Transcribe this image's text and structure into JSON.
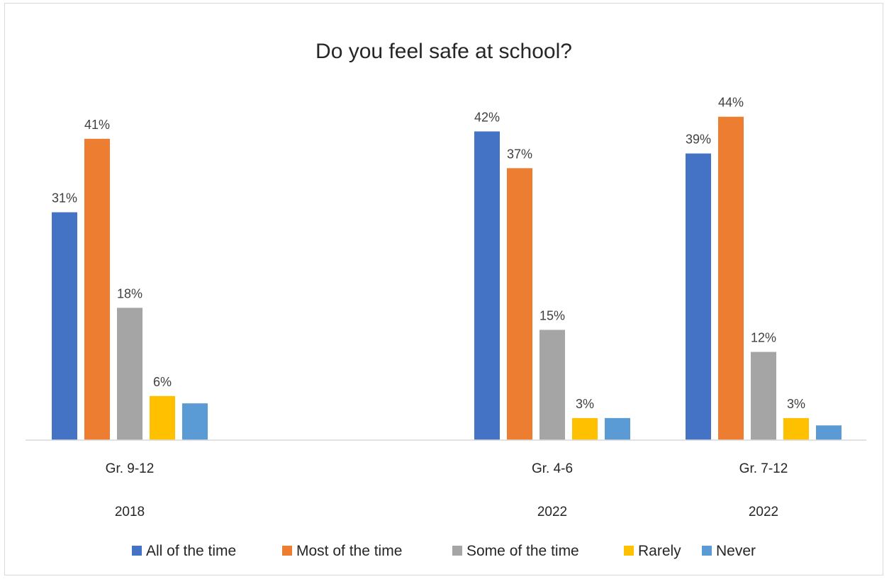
{
  "chart_data": {
    "type": "bar",
    "title": "Do you feel safe at school?",
    "groups": [
      {
        "category": "Gr. 9-12",
        "year": "2018"
      },
      {
        "category": "",
        "year": ""
      },
      {
        "category": "Gr. 4-6",
        "year": "2022"
      },
      {
        "category": "Gr. 7-12",
        "year": "2022"
      }
    ],
    "series": [
      {
        "name": "All of the time",
        "color": "#4472C4",
        "values": [
          31,
          null,
          42,
          39
        ],
        "labels": [
          "31%",
          "",
          "42%",
          "39%"
        ]
      },
      {
        "name": "Most of the time",
        "color": "#ED7D31",
        "values": [
          41,
          null,
          37,
          44
        ],
        "labels": [
          "41%",
          "",
          "37%",
          "44%"
        ]
      },
      {
        "name": "Some of the time",
        "color": "#A5A5A5",
        "values": [
          18,
          null,
          15,
          12
        ],
        "labels": [
          "18%",
          "",
          "15%",
          "12%"
        ]
      },
      {
        "name": "Rarely",
        "color": "#FFC000",
        "values": [
          6,
          null,
          3,
          3
        ],
        "labels": [
          "6%",
          "",
          "3%",
          "3%"
        ]
      },
      {
        "name": "Never",
        "color": "#5B9BD5",
        "values": [
          5,
          null,
          3,
          2
        ],
        "labels": [
          "",
          "",
          "",
          ""
        ]
      }
    ],
    "ylim": [
      0,
      46
    ],
    "grid": false,
    "legend": "bottom"
  }
}
